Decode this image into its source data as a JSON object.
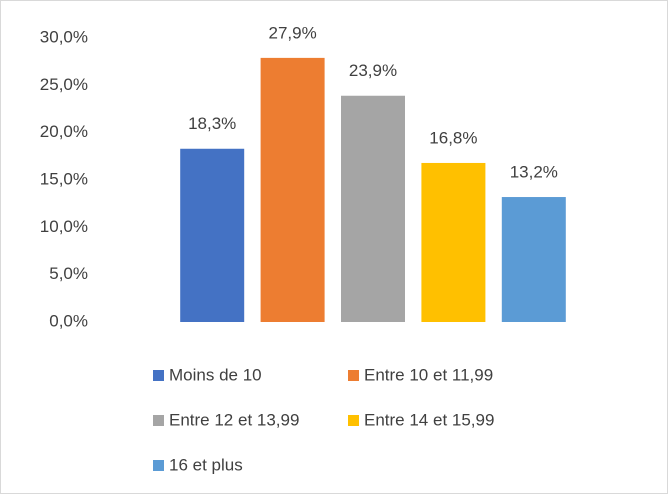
{
  "chart_data": {
    "type": "bar",
    "series": [
      {
        "name": "Moins de 10",
        "color": "#4472c4",
        "values": [
          18.3
        ],
        "value_labels": [
          "18,3%"
        ]
      },
      {
        "name": "Entre 10 et 11,99",
        "color": "#ed7d31",
        "values": [
          27.9
        ],
        "value_labels": [
          "27,9%"
        ]
      },
      {
        "name": "Entre 12 et 13,99",
        "color": "#a5a5a5",
        "values": [
          23.9
        ],
        "value_labels": [
          "23,9%"
        ]
      },
      {
        "name": "Entre 14 et 15,99",
        "color": "#ffc000",
        "values": [
          16.8
        ],
        "value_labels": [
          "16,8%"
        ]
      },
      {
        "name": "16 et plus",
        "color": "#5b9bd5",
        "values": [
          13.2
        ],
        "value_labels": [
          "13,2%"
        ]
      }
    ],
    "ylim": [
      0,
      30
    ],
    "yticks": [
      {
        "value": 0,
        "label": "0,0%"
      },
      {
        "value": 5,
        "label": "5,0%"
      },
      {
        "value": 10,
        "label": "10,0%"
      },
      {
        "value": 15,
        "label": "15,0%"
      },
      {
        "value": 20,
        "label": "20,0%"
      },
      {
        "value": 25,
        "label": "25,0%"
      },
      {
        "value": 30,
        "label": "30,0%"
      }
    ],
    "grid": false,
    "legend": "bottom"
  }
}
